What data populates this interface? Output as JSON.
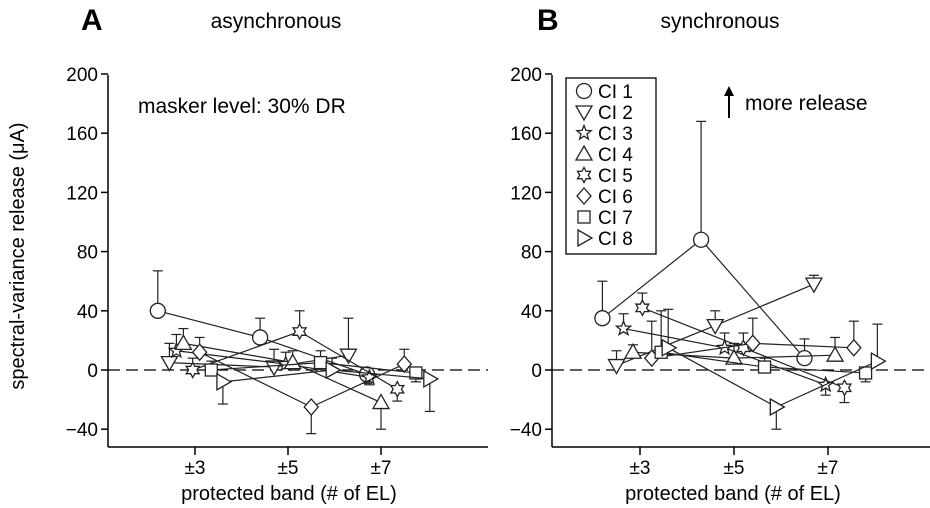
{
  "chart_data": [
    {
      "type": "scatter",
      "panel": "A",
      "title": "asynchronous",
      "annotation": "masker level: 30% DR",
      "xlabel": "protected band (# of EL)",
      "ylabel": "spectral-variance release (μA)",
      "x_ticks": [
        "±3",
        "±5",
        "±7"
      ],
      "y_ticks": [
        "200",
        "160",
        "120",
        "80",
        "40",
        "0",
        "−40"
      ],
      "ylim": [
        -50,
        200
      ],
      "zero_line": "dashed",
      "series": [
        {
          "name": "CI 1",
          "marker": "circle",
          "points": [
            {
              "x": 2.2,
              "y": 40,
              "err": 27
            },
            {
              "x": 4.4,
              "y": 22,
              "err": 13
            },
            {
              "x": 6.7,
              "y": -3,
              "err": 6
            }
          ]
        },
        {
          "name": "CI 2",
          "marker": "triangle-down",
          "points": [
            {
              "x": 2.45,
              "y": 5,
              "err": 13
            },
            {
              "x": 4.7,
              "y": 2,
              "err": 12
            },
            {
              "x": 6.3,
              "y": 10,
              "err": 25
            }
          ]
        },
        {
          "name": "CI 3",
          "marker": "star",
          "points": [
            {
              "x": 2.6,
              "y": 13,
              "err": 11
            },
            {
              "x": 4.95,
              "y": 4,
              "err": 8
            },
            {
              "x": 6.75,
              "y": -5,
              "err": 5
            }
          ]
        },
        {
          "name": "CI 4",
          "marker": "triangle-up",
          "points": [
            {
              "x": 2.75,
              "y": 18,
              "err": 10
            },
            {
              "x": 5.1,
              "y": 5,
              "err": 8
            },
            {
              "x": 7.0,
              "y": -22,
              "err": 18
            }
          ]
        },
        {
          "name": "CI 5",
          "marker": "star6",
          "points": [
            {
              "x": 2.95,
              "y": 0,
              "err": 8
            },
            {
              "x": 5.25,
              "y": 26,
              "err": 14
            },
            {
              "x": 7.35,
              "y": -13,
              "err": 8
            }
          ]
        },
        {
          "name": "CI 6",
          "marker": "diamond",
          "points": [
            {
              "x": 3.1,
              "y": 12,
              "err": 10
            },
            {
              "x": 5.5,
              "y": -25,
              "err": 18
            },
            {
              "x": 7.5,
              "y": 4,
              "err": 10
            }
          ]
        },
        {
          "name": "CI 7",
          "marker": "square",
          "points": [
            {
              "x": 3.35,
              "y": 0,
              "err": 6
            },
            {
              "x": 5.7,
              "y": 5,
              "err": 8
            },
            {
              "x": 7.75,
              "y": -2,
              "err": 6
            }
          ]
        },
        {
          "name": "CI 8",
          "marker": "triangle-right",
          "points": [
            {
              "x": 3.6,
              "y": -8,
              "err": 15
            },
            {
              "x": 5.95,
              "y": 0,
              "err": 8
            },
            {
              "x": 8.05,
              "y": -6,
              "err": 22
            }
          ]
        }
      ]
    },
    {
      "type": "scatter",
      "panel": "B",
      "title": "synchronous",
      "annotation": "more release",
      "xlabel": "protected band (# of EL)",
      "ylabel": "",
      "x_ticks": [
        "±3",
        "±5",
        "±7"
      ],
      "y_ticks": [
        "200",
        "160",
        "120",
        "80",
        "40",
        "0",
        "−40"
      ],
      "ylim": [
        -50,
        200
      ],
      "zero_line": "dashed",
      "legend": "top-left",
      "series": [
        {
          "name": "CI 1",
          "marker": "circle",
          "points": [
            {
              "x": 2.2,
              "y": 35,
              "err": 25
            },
            {
              "x": 4.3,
              "y": 88,
              "err": 80
            },
            {
              "x": 6.5,
              "y": 8,
              "err": 13
            }
          ]
        },
        {
          "name": "CI 2",
          "marker": "triangle-down",
          "points": [
            {
              "x": 2.5,
              "y": 3,
              "err": 10
            },
            {
              "x": 4.6,
              "y": 30,
              "err": 10
            },
            {
              "x": 6.7,
              "y": 58,
              "err": 6
            }
          ]
        },
        {
          "name": "CI 3",
          "marker": "star",
          "points": [
            {
              "x": 2.65,
              "y": 28,
              "err": 10
            },
            {
              "x": 4.8,
              "y": 15,
              "err": 10
            },
            {
              "x": 6.95,
              "y": -10,
              "err": 7
            }
          ]
        },
        {
          "name": "CI 4",
          "marker": "triangle-up",
          "points": [
            {
              "x": 2.85,
              "y": 12,
              "err": 5
            },
            {
              "x": 5.0,
              "y": 8,
              "err": 10
            },
            {
              "x": 7.15,
              "y": 10,
              "err": 12
            }
          ]
        },
        {
          "name": "CI 5",
          "marker": "star6",
          "points": [
            {
              "x": 3.05,
              "y": 42,
              "err": 10
            },
            {
              "x": 5.2,
              "y": 15,
              "err": 10
            },
            {
              "x": 7.35,
              "y": -12,
              "err": 10
            }
          ]
        },
        {
          "name": "CI 6",
          "marker": "diamond",
          "points": [
            {
              "x": 3.25,
              "y": 8,
              "err": 25
            },
            {
              "x": 5.4,
              "y": 18,
              "err": 17
            },
            {
              "x": 7.55,
              "y": 15,
              "err": 18
            }
          ]
        },
        {
          "name": "CI 7",
          "marker": "square",
          "points": [
            {
              "x": 3.45,
              "y": 12,
              "err": 28
            },
            {
              "x": 5.65,
              "y": 2,
              "err": 6
            },
            {
              "x": 7.8,
              "y": -2,
              "err": 6
            }
          ]
        },
        {
          "name": "CI 8",
          "marker": "triangle-right",
          "points": [
            {
              "x": 3.6,
              "y": 15,
              "err": 26
            },
            {
              "x": 5.9,
              "y": -25,
              "err": 15
            },
            {
              "x": 8.05,
              "y": 6,
              "err": 25
            }
          ]
        }
      ]
    }
  ]
}
